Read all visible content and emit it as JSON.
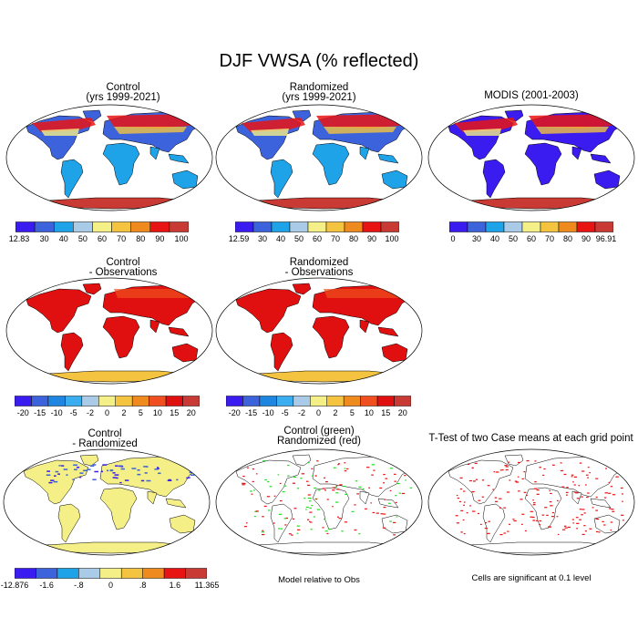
{
  "title": "DJF VWSA (% reflected)",
  "panels": [
    {
      "id": "control",
      "title": [
        "Control",
        "(yrs 1999-2021)"
      ],
      "scheme": "abs",
      "labels": [
        "12.83",
        "30",
        "40",
        "50",
        "60",
        "70",
        "80",
        "90",
        "100"
      ]
    },
    {
      "id": "randomized",
      "title": [
        "Randomized",
        "(yrs 1999-2021)"
      ],
      "scheme": "abs",
      "labels": [
        "12.59",
        "30",
        "40",
        "50",
        "60",
        "70",
        "80",
        "90",
        "100"
      ]
    },
    {
      "id": "modis",
      "title": [
        "MODIS (2001-2003)"
      ],
      "scheme": "obs",
      "labels": [
        "0",
        "30",
        "40",
        "50",
        "60",
        "70",
        "80",
        "90",
        "96.91"
      ]
    },
    {
      "id": "control-minus-obs",
      "title": [
        "Control",
        "- Observations"
      ],
      "scheme": "diff",
      "labels": [
        "-20",
        "-15",
        "-10",
        "-5",
        "-2",
        "0",
        "2",
        "5",
        "10",
        "15",
        "20"
      ]
    },
    {
      "id": "randomized-minus-obs",
      "title": [
        "Randomized",
        "- Observations"
      ],
      "scheme": "diff",
      "labels": [
        "-20",
        "-15",
        "-10",
        "-5",
        "-2",
        "0",
        "2",
        "5",
        "10",
        "15",
        "20"
      ]
    },
    {
      "id": "control-minus-randomized",
      "title": [
        "Control",
        "- Randomized"
      ],
      "scheme": "cr",
      "labels": [
        "-12.876",
        "-1.6",
        "-.8",
        "0",
        ".8",
        "1.6",
        "11.365"
      ]
    },
    {
      "id": "model-relative-to-obs",
      "title": [
        "Control (green)",
        "Randomized (red)"
      ],
      "scheme": "rel",
      "note": "Model relative to Obs"
    },
    {
      "id": "t-test",
      "title": [
        "T-Test of two Case means at each grid point"
      ],
      "scheme": "ttest",
      "note": "Cells are significant at 0.1 level"
    }
  ],
  "colors": {
    "scale": [
      "#3a1bf0",
      "#3c63dc",
      "#1ea2e8",
      "#a9cbe8",
      "#f4ef86",
      "#f4c340",
      "#ef8a1e",
      "#e81414",
      "#c83a33"
    ],
    "diff": [
      "#3a1bf0",
      "#3c63dc",
      "#1e86e0",
      "#3aaef0",
      "#a9cbe8",
      "#f4ef86",
      "#f4c340",
      "#ef8a1e",
      "#f05020",
      "#e01010",
      "#c83a33"
    ],
    "cr": [
      "#3a1bf0",
      "#3c63dc",
      "#1ea2e8",
      "#a9cbe8",
      "#f4ef86",
      "#f4c340",
      "#ef8a1e",
      "#e81414",
      "#c83a33"
    ],
    "green": "#22dd22",
    "red": "#ee1111",
    "land": "#ffffff",
    "outline": "#000000"
  }
}
